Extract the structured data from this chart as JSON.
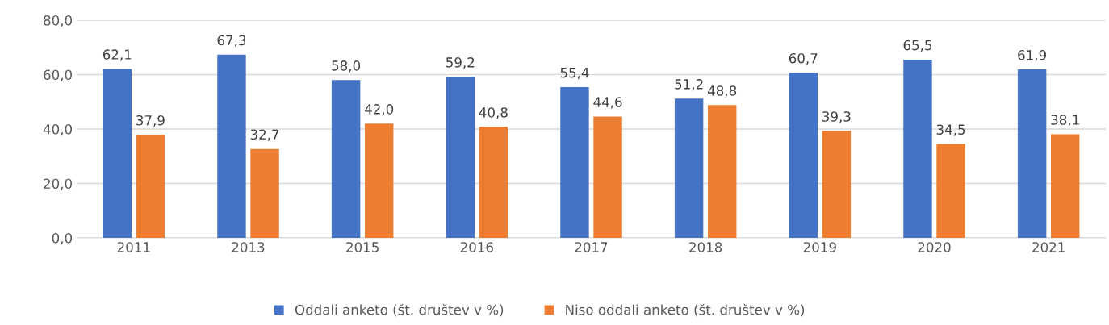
{
  "chart_data": {
    "type": "bar",
    "categories": [
      "2011",
      "2013",
      "2015",
      "2016",
      "2017",
      "2018",
      "2019",
      "2020",
      "2021"
    ],
    "series": [
      {
        "name": "Oddali anketo (št. društev v %)",
        "color": "#4472c4",
        "values": [
          62.1,
          67.3,
          58.0,
          59.2,
          55.4,
          51.2,
          60.7,
          65.5,
          61.9
        ],
        "value_labels": [
          "62,1",
          "67,3",
          "58,0",
          "59,2",
          "55,4",
          "51,2",
          "60,7",
          "65,5",
          "61,9"
        ]
      },
      {
        "name": "Niso oddali anketo (št. društev v %)",
        "color": "#ed7d31",
        "values": [
          37.9,
          32.7,
          42.0,
          40.8,
          44.6,
          48.8,
          39.3,
          34.5,
          38.1
        ],
        "value_labels": [
          "37,9",
          "32,7",
          "42,0",
          "40,8",
          "44,6",
          "48,8",
          "39,3",
          "34,5",
          "38,1"
        ]
      }
    ],
    "ylim": [
      0,
      80
    ],
    "yticks": [
      {
        "value": 0,
        "label": "0,0"
      },
      {
        "value": 20,
        "label": "20,0"
      },
      {
        "value": 40,
        "label": "40,0"
      },
      {
        "value": 60,
        "label": "60,0"
      },
      {
        "value": 80,
        "label": "80,0"
      }
    ],
    "grid": "y",
    "legend": "bottom"
  }
}
